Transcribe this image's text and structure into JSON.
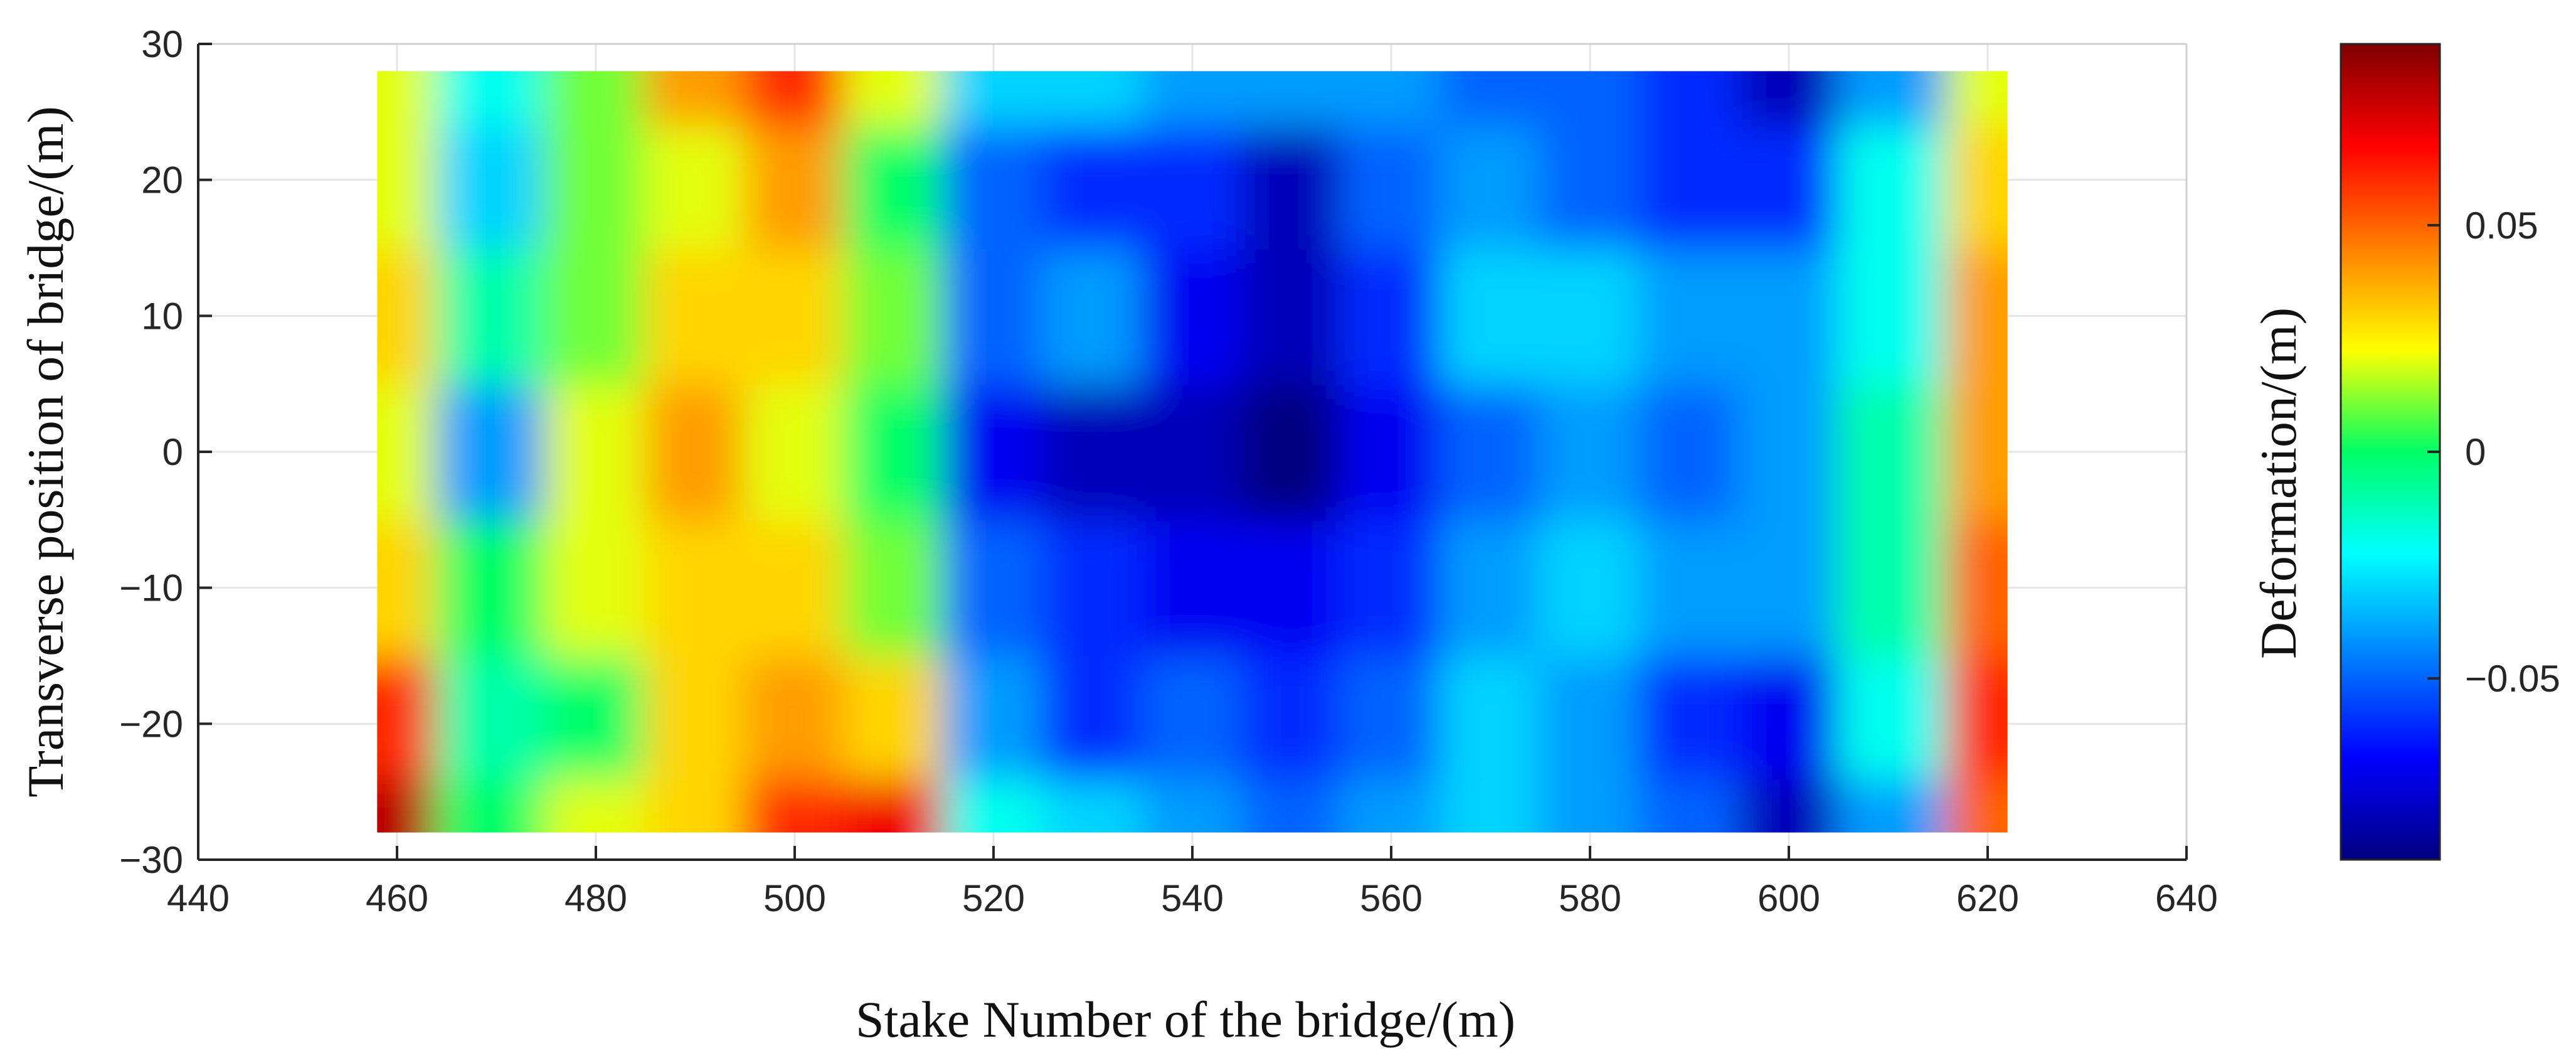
{
  "chart_data": {
    "type": "heatmap",
    "title": "",
    "xlabel": "Stake Number of the bridge/(m)",
    "ylabel": "Transverse position of bridge/(m)",
    "colorbar_label": "Deformation/(m)",
    "xlim": [
      440,
      640
    ],
    "ylim": [
      -30,
      30
    ],
    "x_ticks": [
      440,
      460,
      480,
      500,
      520,
      540,
      560,
      580,
      600,
      620,
      640
    ],
    "y_ticks": [
      -30,
      -20,
      -10,
      0,
      10,
      20,
      30
    ],
    "x_tick_labels": [
      "440",
      "460",
      "480",
      "500",
      "520",
      "540",
      "560",
      "580",
      "600",
      "620",
      "640"
    ],
    "y_tick_labels": [
      "−30",
      "−20",
      "−10",
      "0",
      "10",
      "20",
      "30"
    ],
    "colorbar_ticks": [
      -0.05,
      0,
      0.05
    ],
    "colorbar_tick_labels": [
      "−0.05",
      "0",
      "0.05"
    ],
    "color_range": [
      -0.09,
      0.09
    ],
    "colormap": "jet",
    "grid": true,
    "data_extent": {
      "x": [
        458,
        622
      ],
      "y": [
        -28,
        28
      ]
    },
    "x": [
      458,
      470,
      480,
      490,
      500,
      510,
      520,
      530,
      540,
      550,
      560,
      570,
      580,
      590,
      600,
      610,
      622
    ],
    "y": [
      -28,
      -20,
      -10,
      0,
      10,
      20,
      28
    ],
    "z": [
      [
        0.08,
        0.0,
        0.02,
        0.03,
        0.06,
        0.07,
        -0.02,
        -0.03,
        -0.04,
        -0.05,
        -0.04,
        -0.03,
        -0.04,
        -0.05,
        -0.08,
        -0.04,
        0.05
      ],
      [
        0.06,
        -0.01,
        0.0,
        0.03,
        0.04,
        0.03,
        -0.04,
        -0.06,
        -0.05,
        -0.06,
        -0.05,
        -0.03,
        -0.04,
        -0.06,
        -0.07,
        -0.02,
        0.06
      ],
      [
        0.03,
        0.0,
        0.02,
        0.03,
        0.03,
        0.01,
        -0.05,
        -0.06,
        -0.07,
        -0.07,
        -0.06,
        -0.04,
        -0.03,
        -0.04,
        -0.04,
        -0.01,
        0.05
      ],
      [
        0.02,
        -0.04,
        0.02,
        0.04,
        0.02,
        0.0,
        -0.07,
        -0.08,
        -0.08,
        -0.09,
        -0.07,
        -0.05,
        -0.04,
        -0.05,
        -0.04,
        -0.01,
        0.04
      ],
      [
        0.03,
        -0.01,
        0.01,
        0.03,
        0.03,
        0.01,
        -0.05,
        -0.04,
        -0.07,
        -0.08,
        -0.06,
        -0.03,
        -0.03,
        -0.04,
        -0.04,
        -0.02,
        0.04
      ],
      [
        0.02,
        -0.03,
        0.01,
        0.02,
        0.04,
        0.0,
        -0.05,
        -0.06,
        -0.06,
        -0.08,
        -0.05,
        -0.04,
        -0.05,
        -0.06,
        -0.06,
        -0.02,
        0.03
      ],
      [
        0.02,
        -0.02,
        0.01,
        0.04,
        0.06,
        0.02,
        -0.03,
        -0.03,
        -0.04,
        -0.04,
        -0.04,
        -0.05,
        -0.05,
        -0.06,
        -0.08,
        -0.04,
        0.02
      ]
    ]
  }
}
